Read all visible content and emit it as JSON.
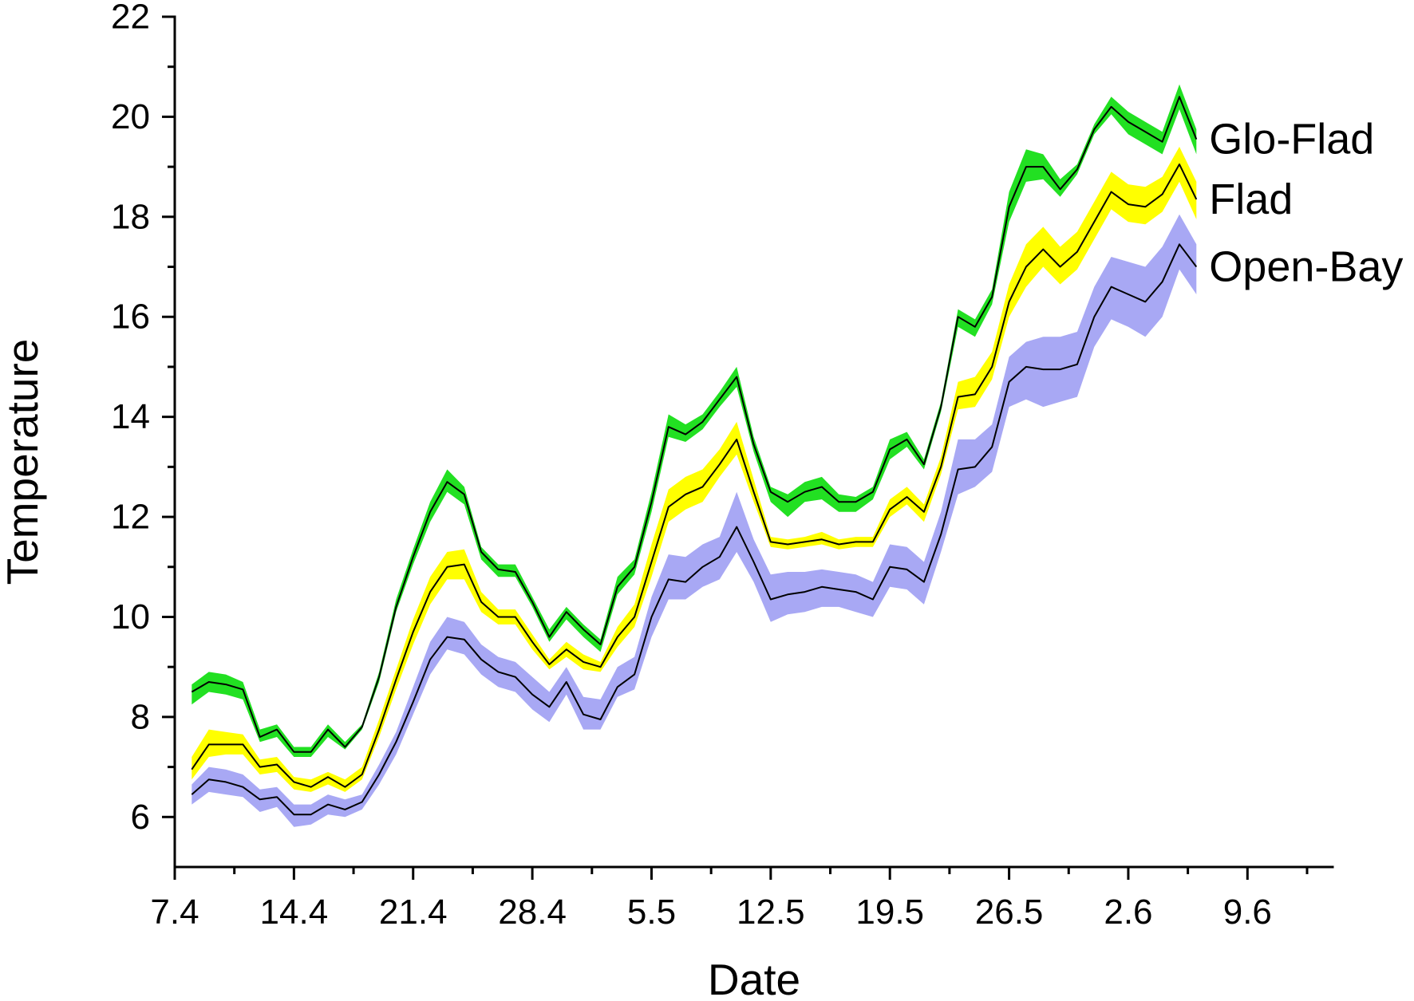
{
  "chart_data": {
    "type": "line",
    "title": "",
    "xlabel": "Date",
    "ylabel": "Temperature",
    "xlim": [
      "7.4",
      "14.6"
    ],
    "x_ticks": [
      "7.4",
      "14.4",
      "21.4",
      "28.4",
      "5.5",
      "12.5",
      "19.5",
      "26.5",
      "2.6",
      "9.6"
    ],
    "ylim": [
      5,
      22
    ],
    "y_ticks": [
      6,
      8,
      10,
      12,
      14,
      16,
      18,
      20,
      22
    ],
    "grid": false,
    "legend": "right",
    "x": [
      "8.4",
      "9.4",
      "10.4",
      "11.4",
      "12.4",
      "13.4",
      "14.4",
      "15.4",
      "16.4",
      "17.4",
      "18.4",
      "19.4",
      "20.4",
      "21.4",
      "22.4",
      "23.4",
      "24.4",
      "25.4",
      "26.4",
      "27.4",
      "28.4",
      "29.4",
      "30.4",
      "1.5",
      "2.5",
      "3.5",
      "4.5",
      "5.5",
      "6.5",
      "7.5",
      "8.5",
      "9.5",
      "10.5",
      "11.5",
      "12.5",
      "13.5",
      "14.5",
      "15.5",
      "16.5",
      "17.5",
      "18.5",
      "19.5",
      "20.5",
      "21.5",
      "22.5",
      "23.5",
      "24.5",
      "25.5",
      "26.5",
      "27.5",
      "28.5",
      "29.5",
      "30.5",
      "31.5",
      "1.6",
      "2.6",
      "3.6",
      "4.6",
      "5.6",
      "6.6"
    ],
    "series": [
      {
        "name": "Glo-Flad",
        "color": "#22e022",
        "line_color": "#000000",
        "values": [
          8.5,
          8.7,
          8.65,
          8.55,
          7.6,
          7.75,
          7.3,
          7.3,
          7.75,
          7.4,
          7.8,
          8.8,
          10.2,
          11.2,
          12.1,
          12.7,
          12.45,
          11.3,
          10.95,
          10.9,
          10.3,
          9.6,
          10.1,
          9.75,
          9.45,
          10.6,
          11.0,
          12.3,
          13.8,
          13.65,
          13.9,
          14.35,
          14.8,
          13.45,
          12.5,
          12.3,
          12.5,
          12.6,
          12.3,
          12.3,
          12.5,
          13.35,
          13.55,
          13.05,
          14.2,
          16.0,
          15.8,
          16.4,
          18.2,
          19.0,
          19.0,
          18.55,
          18.95,
          19.75,
          20.2,
          19.9,
          19.7,
          19.5,
          20.4,
          19.55
        ],
        "lower": [
          8.25,
          8.5,
          8.45,
          8.35,
          7.5,
          7.6,
          7.2,
          7.2,
          7.6,
          7.35,
          7.75,
          8.7,
          10.1,
          11.05,
          11.9,
          12.5,
          12.25,
          11.15,
          10.8,
          10.8,
          10.2,
          9.5,
          9.95,
          9.6,
          9.3,
          10.45,
          10.85,
          12.1,
          13.6,
          13.5,
          13.75,
          14.2,
          14.6,
          13.3,
          12.3,
          12.0,
          12.3,
          12.35,
          12.1,
          12.1,
          12.35,
          13.15,
          13.4,
          12.95,
          14.1,
          15.8,
          15.6,
          16.25,
          17.9,
          18.7,
          18.75,
          18.4,
          18.85,
          19.65,
          20.05,
          19.65,
          19.45,
          19.25,
          20.15,
          19.25
        ],
        "upper": [
          8.65,
          8.9,
          8.85,
          8.7,
          7.75,
          7.85,
          7.4,
          7.4,
          7.85,
          7.5,
          7.85,
          8.9,
          10.35,
          11.35,
          12.3,
          12.95,
          12.6,
          11.4,
          11.05,
          11.05,
          10.4,
          9.75,
          10.2,
          9.85,
          9.55,
          10.8,
          11.15,
          12.5,
          14.05,
          13.85,
          14.05,
          14.5,
          15.0,
          13.6,
          12.6,
          12.45,
          12.7,
          12.8,
          12.45,
          12.4,
          12.6,
          13.55,
          13.7,
          13.15,
          14.3,
          16.15,
          15.95,
          16.55,
          18.5,
          19.35,
          19.25,
          18.75,
          19.05,
          19.85,
          20.4,
          20.1,
          19.9,
          19.7,
          20.65,
          19.75
        ]
      },
      {
        "name": "Flad",
        "color": "#ffff00",
        "line_color": "#000000",
        "values": [
          6.95,
          7.45,
          7.45,
          7.45,
          7.0,
          7.05,
          6.7,
          6.6,
          6.8,
          6.6,
          6.85,
          7.75,
          8.75,
          9.7,
          10.5,
          11.0,
          11.05,
          10.3,
          10.0,
          10.0,
          9.5,
          9.05,
          9.35,
          9.1,
          9.0,
          9.6,
          10.0,
          11.1,
          12.2,
          12.45,
          12.6,
          13.05,
          13.55,
          12.5,
          11.5,
          11.45,
          11.5,
          11.55,
          11.45,
          11.5,
          11.5,
          12.15,
          12.4,
          12.1,
          13.0,
          14.4,
          14.45,
          15.0,
          16.3,
          17.0,
          17.35,
          17.0,
          17.3,
          17.9,
          18.5,
          18.25,
          18.2,
          18.45,
          19.05,
          18.35
        ],
        "lower": [
          6.75,
          7.2,
          7.25,
          7.25,
          6.85,
          6.9,
          6.55,
          6.5,
          6.65,
          6.5,
          6.75,
          7.6,
          8.55,
          9.45,
          10.25,
          10.75,
          10.75,
          10.1,
          9.85,
          9.85,
          9.35,
          8.95,
          9.2,
          8.95,
          8.9,
          9.4,
          9.8,
          10.8,
          11.9,
          12.15,
          12.3,
          12.8,
          13.25,
          12.3,
          11.4,
          11.35,
          11.4,
          11.45,
          11.35,
          11.4,
          11.4,
          12.0,
          12.25,
          11.9,
          12.85,
          14.15,
          14.2,
          14.75,
          16.0,
          16.6,
          17.0,
          16.65,
          16.95,
          17.55,
          18.15,
          17.9,
          17.85,
          18.1,
          18.7,
          17.95
        ],
        "upper": [
          7.2,
          7.75,
          7.7,
          7.65,
          7.15,
          7.2,
          6.8,
          6.75,
          6.9,
          6.75,
          7.0,
          7.95,
          8.95,
          9.95,
          10.8,
          11.3,
          11.35,
          10.5,
          10.15,
          10.15,
          9.65,
          9.15,
          9.5,
          9.25,
          9.1,
          9.8,
          10.25,
          11.45,
          12.55,
          12.8,
          12.95,
          13.35,
          13.9,
          12.75,
          11.6,
          11.55,
          11.6,
          11.7,
          11.55,
          11.6,
          11.6,
          12.35,
          12.6,
          12.25,
          13.2,
          14.7,
          14.8,
          15.3,
          16.65,
          17.45,
          17.8,
          17.4,
          17.7,
          18.3,
          18.9,
          18.65,
          18.6,
          18.8,
          19.4,
          18.7
        ]
      },
      {
        "name": "Open-Bay",
        "color": "#a8a8f4",
        "line_color": "#000000",
        "values": [
          6.45,
          6.75,
          6.7,
          6.6,
          6.35,
          6.4,
          6.05,
          6.05,
          6.25,
          6.15,
          6.3,
          6.85,
          7.5,
          8.3,
          9.15,
          9.6,
          9.55,
          9.15,
          8.9,
          8.8,
          8.45,
          8.2,
          8.7,
          8.05,
          7.95,
          8.6,
          8.85,
          10.0,
          10.75,
          10.7,
          11.0,
          11.2,
          11.8,
          11.1,
          10.35,
          10.45,
          10.5,
          10.6,
          10.55,
          10.5,
          10.35,
          11.0,
          10.95,
          10.7,
          11.65,
          12.95,
          13.0,
          13.4,
          14.7,
          15.0,
          14.95,
          14.95,
          15.05,
          16.0,
          16.6,
          16.45,
          16.3,
          16.7,
          17.45,
          17.0
        ],
        "lower": [
          6.25,
          6.5,
          6.45,
          6.4,
          6.1,
          6.2,
          5.8,
          5.85,
          6.05,
          6.0,
          6.15,
          6.65,
          7.25,
          8.05,
          8.85,
          9.35,
          9.25,
          8.85,
          8.6,
          8.5,
          8.15,
          7.9,
          8.45,
          7.75,
          7.75,
          8.4,
          8.55,
          9.6,
          10.35,
          10.35,
          10.6,
          10.75,
          11.3,
          10.7,
          9.9,
          10.05,
          10.1,
          10.2,
          10.2,
          10.1,
          10.0,
          10.6,
          10.55,
          10.25,
          11.3,
          12.45,
          12.6,
          12.9,
          14.2,
          14.35,
          14.2,
          14.3,
          14.4,
          15.4,
          15.95,
          15.8,
          15.6,
          16.0,
          16.95,
          16.45
        ],
        "upper": [
          6.65,
          7.0,
          6.95,
          6.85,
          6.55,
          6.6,
          6.25,
          6.25,
          6.45,
          6.35,
          6.45,
          7.05,
          7.7,
          8.6,
          9.5,
          10.0,
          9.9,
          9.45,
          9.2,
          9.1,
          8.8,
          8.5,
          9.0,
          8.4,
          8.35,
          9.0,
          9.2,
          10.4,
          11.25,
          11.2,
          11.45,
          11.6,
          12.5,
          11.55,
          10.85,
          10.9,
          10.9,
          10.95,
          10.9,
          10.85,
          10.7,
          11.45,
          11.4,
          11.1,
          12.1,
          13.55,
          13.55,
          13.85,
          15.2,
          15.5,
          15.6,
          15.6,
          15.7,
          16.6,
          17.2,
          17.1,
          17.0,
          17.4,
          18.05,
          17.45
        ]
      }
    ]
  }
}
